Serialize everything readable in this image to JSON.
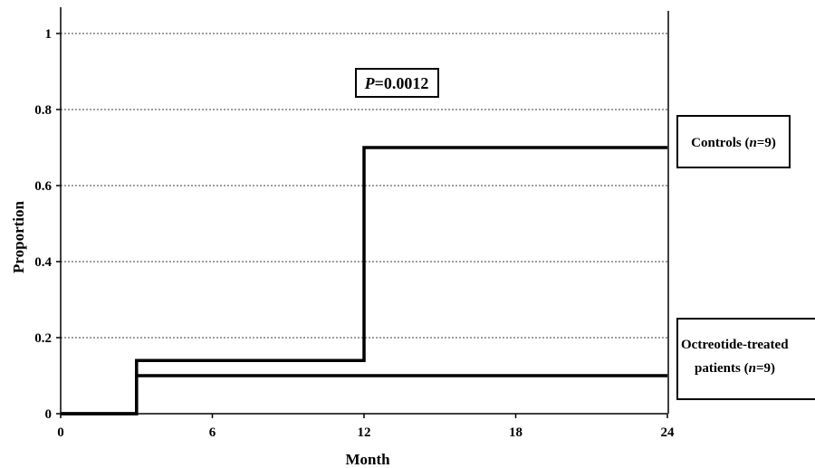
{
  "chart_data": {
    "type": "line",
    "step": true,
    "title": "",
    "xlabel": "Month",
    "ylabel": "Proportion",
    "xlim": [
      0,
      24
    ],
    "ylim": [
      0,
      1
    ],
    "xticks": [
      0,
      6,
      12,
      18,
      24
    ],
    "xtick_labels": [
      "0",
      "6",
      "12",
      "18",
      "24"
    ],
    "yticks": [
      0,
      0.2,
      0.4,
      0.6,
      0.8,
      1
    ],
    "ytick_labels": [
      "0",
      "0.2",
      "0.4",
      "0.6",
      "0.8",
      "1"
    ],
    "grid": "horizontal-dashed",
    "annotation": {
      "prefix": "P",
      "value": "=0.0012"
    },
    "series": [
      {
        "name": "Controls (n=9)",
        "label_parts": {
          "lead": "Controls (",
          "n": "n",
          "rest": "=9)"
        },
        "x": [
          0,
          3,
          3,
          12,
          12,
          24
        ],
        "y": [
          0,
          0,
          0.14,
          0.14,
          0.7,
          0.7
        ]
      },
      {
        "name": "Octreotide-treated patients (n=9)",
        "label_parts": {
          "line1": "Octreotide-treated",
          "lead": "patients (",
          "n": "n",
          "rest": "=9)"
        },
        "x": [
          0,
          3,
          3,
          24
        ],
        "y": [
          0,
          0,
          0.1,
          0.1
        ]
      }
    ]
  }
}
